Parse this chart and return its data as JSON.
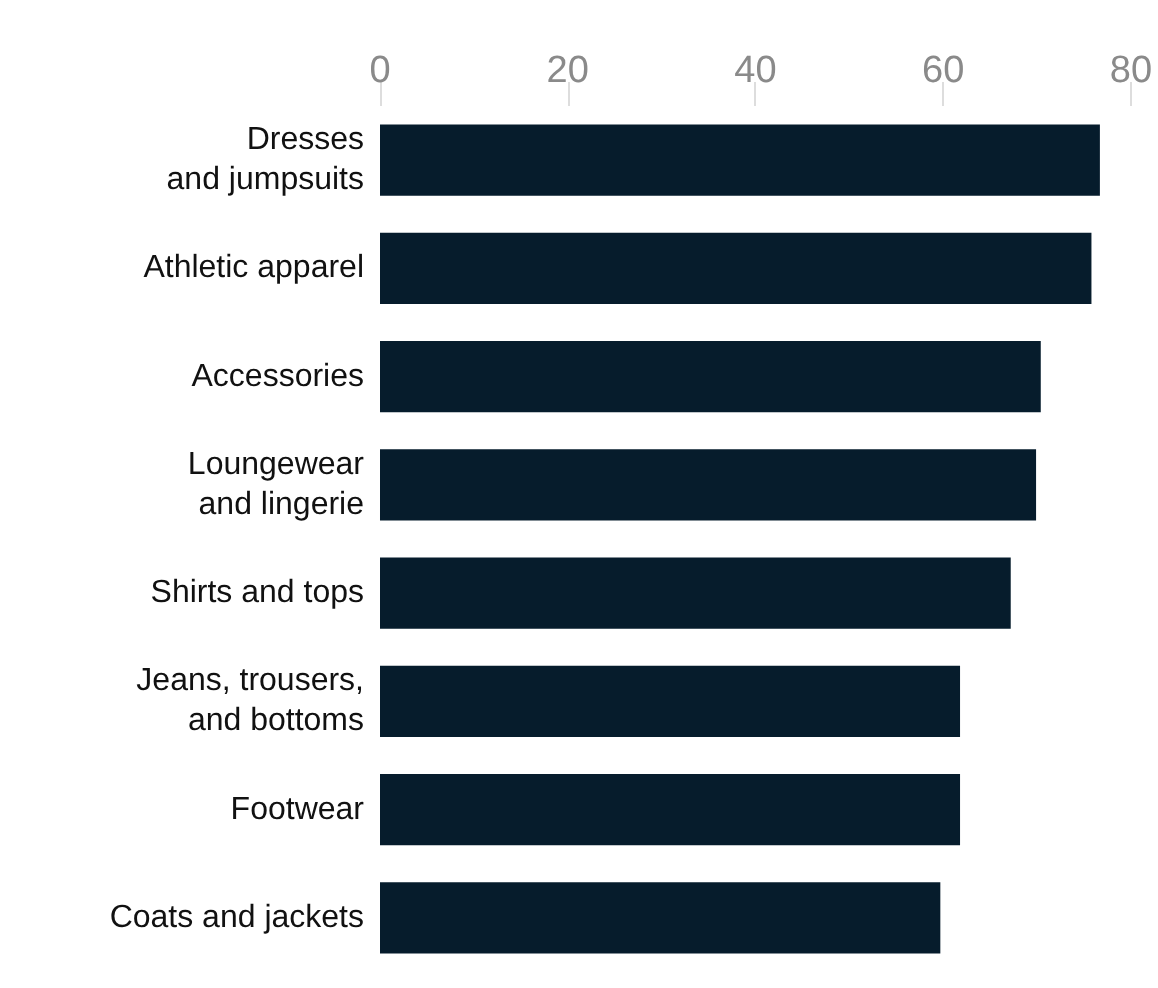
{
  "chart_data": {
    "type": "bar",
    "orientation": "horizontal",
    "categories": [
      "Dresses\nand jumpsuits",
      "Athletic apparel",
      "Accessories",
      "Loungewear\nand lingerie",
      "Shirts and tops",
      "Jeans, trousers,\nand bottoms",
      "Footwear",
      "Coats and jackets"
    ],
    "values": [
      76.7,
      75.8,
      70.4,
      69.9,
      67.2,
      61.8,
      61.8,
      59.7
    ],
    "color": "#061c2c",
    "xlim": [
      0,
      80
    ],
    "xticks": [
      0,
      20,
      40,
      60,
      80
    ],
    "grid": false
  }
}
